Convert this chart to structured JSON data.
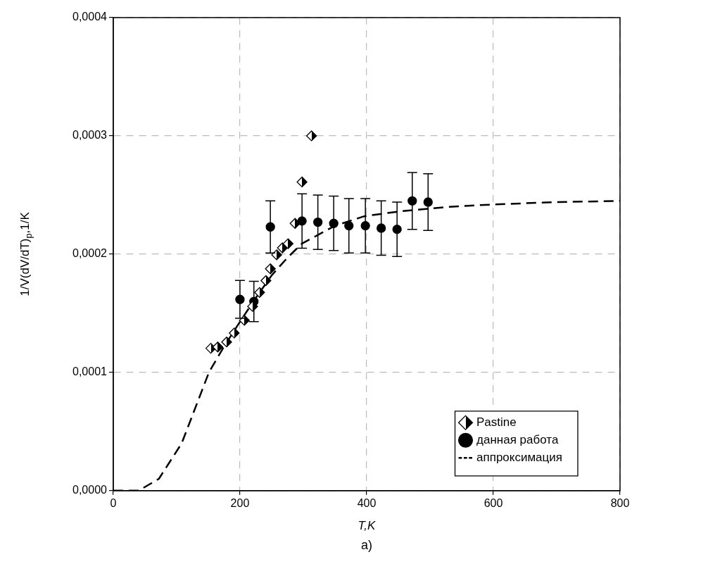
{
  "chart_data": {
    "type": "scatter",
    "xlabel": "T,K",
    "ylabel": "1/V(dV/dT)$_{p}$,1/K",
    "annotations": [
      "а)"
    ],
    "xlim": [
      0,
      800
    ],
    "xticks": [
      0,
      200,
      400,
      600,
      800
    ],
    "ylim": [
      0,
      0.0004
    ],
    "yticks": [
      {
        "value": 0,
        "label": "0,0000"
      },
      {
        "value": 0.0001,
        "label": "0,0001"
      },
      {
        "value": 0.0002,
        "label": "0,0002"
      },
      {
        "value": 0.0003,
        "label": "0,0003"
      },
      {
        "value": 0.0004,
        "label": "0,0004"
      }
    ],
    "grid": true,
    "legend": "bottom right",
    "series": [
      {
        "name": "Pastine",
        "type": "scatter",
        "marker": "diamond",
        "color": "#000000",
        "x": [
          154,
          165,
          179,
          191,
          207,
          220,
          231,
          241,
          248,
          258,
          267,
          276,
          287,
          298,
          313
        ],
        "values": [
          0.0001204,
          0.0001215,
          0.0001257,
          0.0001333,
          0.000144,
          0.0001558,
          0.0001676,
          0.0001776,
          0.0001876,
          0.0001994,
          0.0002053,
          0.0002088,
          0.000226,
          0.000261,
          0.0003
        ]
      },
      {
        "name": "данная работа",
        "type": "scatter",
        "marker": "circle",
        "color": "#000000",
        "x": [
          200,
          222,
          248,
          298,
          323,
          348,
          372,
          398,
          423,
          448,
          472,
          497
        ],
        "values": [
          0.0001617,
          0.00016,
          0.000223,
          0.000228,
          0.000227,
          0.000226,
          0.000224,
          0.000224,
          0.000222,
          0.000221,
          0.000245,
          0.000244
        ],
        "errors": [
          1.6e-05,
          1.7e-05,
          2.2e-05,
          2.3e-05,
          2.3e-05,
          2.3e-05,
          2.3e-05,
          2.3e-05,
          2.3e-05,
          2.3e-05,
          2.4e-05,
          2.4e-05
        ]
      },
      {
        "name": "аппроксимация",
        "type": "line",
        "marker": "none",
        "line_style": "dashed",
        "color": "#000000",
        "x": [
          0,
          40,
          72,
          108,
          151,
          175,
          199,
          225,
          250,
          275,
          298,
          350,
          396,
          450,
          529,
          600,
          700,
          800
        ],
        "values": [
          0,
          0,
          1e-05,
          4e-05,
          0.0001,
          0.000122,
          0.000142,
          0.000163,
          0.000182,
          0.000197,
          0.000209,
          0.000224,
          0.000232,
          0.000236,
          0.00024,
          0.000242,
          0.000244,
          0.000245
        ]
      }
    ]
  }
}
